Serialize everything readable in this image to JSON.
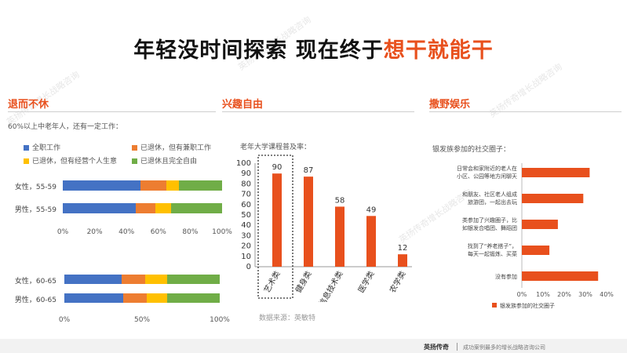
{
  "title": {
    "main": "年轻没时间探索 现在终于",
    "highlight": "想干就能干"
  },
  "watermark": "英扬传奇增长战略咨询",
  "colors": {
    "accent": "#e8501d",
    "blue": "#4472c4",
    "orange": "#ed7d31",
    "yellow": "#ffc000",
    "green": "#70ad47"
  },
  "sections": {
    "left": {
      "title": "退而不休",
      "subtitle": "60%以上中老年人，还有一定工作："
    },
    "middle": {
      "title": "兴趣自由",
      "subtitle": "老年大学课程普及率：",
      "source": "数据来源：英敏特"
    },
    "right": {
      "title": "撒野娱乐",
      "subtitle": "银发族参加的社交圈子："
    }
  },
  "footer": {
    "brand": "英扬传奇",
    "text": "成功案例最多的增长战略咨询公司"
  },
  "chart_data": [
    {
      "type": "bar",
      "orientation": "horizontal",
      "stacked": true,
      "legend": [
        "全职工作",
        "已退休，但有兼职工作",
        "已退休，但有经营个人生意",
        "已退休且完全自由"
      ],
      "categories": [
        "女性，55-59",
        "男性，55-59"
      ],
      "series": [
        {
          "name": "全职工作",
          "values": [
            49,
            46
          ]
        },
        {
          "name": "已退休，但有兼职工作",
          "values": [
            16,
            12
          ]
        },
        {
          "name": "已退休，但有经营个人生意",
          "values": [
            8,
            10
          ]
        },
        {
          "name": "已退休且完全自由",
          "values": [
            27,
            32
          ]
        }
      ],
      "xticks": [
        "0%",
        "20%",
        "40%",
        "60%",
        "80%",
        "100%"
      ],
      "xlim": [
        0,
        100
      ]
    },
    {
      "type": "bar",
      "orientation": "horizontal",
      "stacked": true,
      "categories": [
        "女性，60-65",
        "男性，60-65"
      ],
      "series": [
        {
          "name": "全职工作",
          "values": [
            37,
            38
          ]
        },
        {
          "name": "已退休，但有兼职工作",
          "values": [
            15,
            15
          ]
        },
        {
          "name": "已退休，但有经营个人生意",
          "values": [
            14,
            13
          ]
        },
        {
          "name": "已退休且完全自由",
          "values": [
            34,
            34
          ]
        }
      ],
      "xticks": [
        "0%",
        "50%",
        "100%"
      ],
      "xlim": [
        0,
        100
      ]
    },
    {
      "type": "bar",
      "categories": [
        "艺术类",
        "健身类",
        "信息技术类",
        "医学类",
        "农学类"
      ],
      "values": [
        90,
        87,
        58,
        49,
        12
      ],
      "yticks": [
        "0",
        "10",
        "20",
        "30",
        "40",
        "50",
        "60",
        "70",
        "80",
        "90",
        "100"
      ],
      "ylim": [
        0,
        100
      ]
    },
    {
      "type": "bar",
      "orientation": "horizontal",
      "categories": [
        "日常会和家附近的老人在小区、公园等地方闲聊天",
        "和朋友、社区老人组成旅游团，一起出去玩",
        "类参加了兴趣圈子，比如银发合唱团、舞蹈团",
        "找到了“养老搭子”，每天一起锻炼、买菜",
        "没有参加"
      ],
      "values": [
        32,
        29,
        17,
        13,
        36
      ],
      "legend": [
        "银发族参加的社交圈子"
      ],
      "xticks": [
        "0%",
        "10%",
        "20%",
        "30%",
        "40%"
      ],
      "xlim": [
        0,
        40
      ]
    }
  ]
}
